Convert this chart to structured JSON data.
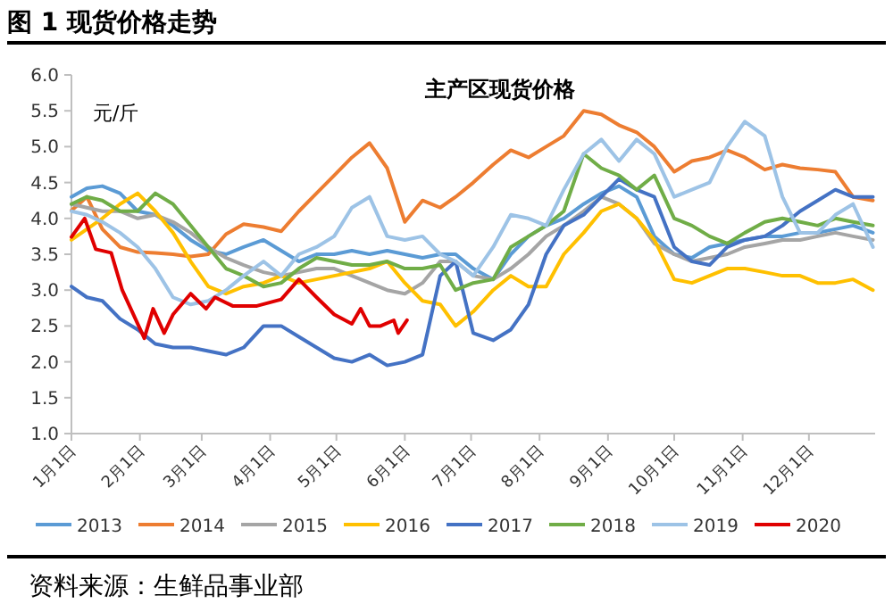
{
  "chart_data": {
    "type": "line",
    "title": "图 1 现货价格走势",
    "subtitle": "主产区现货价格",
    "ylabel": "元/斤",
    "annotations": [
      "资料来源：生鲜品事业部"
    ],
    "x": [
      "--01-01",
      "--01-08",
      "--01-15",
      "--01-23",
      "--01-31",
      "--02-08",
      "--02-16",
      "--02-24",
      "--03-04",
      "--03-12",
      "--03-20",
      "--03-29",
      "--04-06",
      "--04-14",
      "--04-22",
      "--04-30",
      "--05-08",
      "--05-16",
      "--05-24",
      "--06-01",
      "--06-09",
      "--06-17",
      "--06-24",
      "--07-02",
      "--07-11",
      "--07-19",
      "--07-27",
      "--08-04",
      "--08-12",
      "--08-21",
      "--08-29",
      "--09-06",
      "--09-14",
      "--09-22",
      "--10-01",
      "--10-09",
      "--10-17",
      "--10-25",
      "--11-02",
      "--11-11",
      "--11-19",
      "--11-27",
      "--12-05",
      "--12-13",
      "--12-21",
      "--12-30"
    ],
    "xlim": [
      "--01-01",
      "--12-31"
    ],
    "xticks": [
      {
        "value": "--01-01",
        "label": "1月1日"
      },
      {
        "value": "--02-01",
        "label": "2月1日"
      },
      {
        "value": "--03-01",
        "label": "3月1日"
      },
      {
        "value": "--04-01",
        "label": "4月1日"
      },
      {
        "value": "--05-01",
        "label": "5月1日"
      },
      {
        "value": "--06-01",
        "label": "6月1日"
      },
      {
        "value": "--07-01",
        "label": "7月1日"
      },
      {
        "value": "--08-01",
        "label": "8月1日"
      },
      {
        "value": "--09-01",
        "label": "9月1日"
      },
      {
        "value": "--10-01",
        "label": "10月1日"
      },
      {
        "value": "--11-01",
        "label": "11月1日"
      },
      {
        "value": "--12-01",
        "label": "12月1日"
      }
    ],
    "ylim": [
      1,
      6
    ],
    "yticks": [
      {
        "value": 1,
        "label": "1.0"
      },
      {
        "value": 1.5,
        "label": "1.5"
      },
      {
        "value": 2,
        "label": "2.0"
      },
      {
        "value": 2.5,
        "label": "2.5"
      },
      {
        "value": 3,
        "label": "3.0"
      },
      {
        "value": 3.5,
        "label": "3.5"
      },
      {
        "value": 4,
        "label": "4.0"
      },
      {
        "value": 4.5,
        "label": "4.5"
      },
      {
        "value": 5,
        "label": "5.0"
      },
      {
        "value": 5.5,
        "label": "5.5"
      },
      {
        "value": 6,
        "label": "6.0"
      }
    ],
    "legend": "bottom",
    "series": [
      {
        "name": "2013",
        "color": "#5b9bd5",
        "values": [
          4.3,
          4.42,
          4.45,
          4.35,
          4.1,
          4.05,
          3.9,
          3.7,
          3.55,
          3.5,
          3.6,
          3.7,
          3.55,
          3.4,
          3.5,
          3.5,
          3.55,
          3.5,
          3.55,
          3.5,
          3.45,
          3.5,
          3.5,
          3.3,
          3.15,
          3.5,
          3.75,
          3.9,
          4.0,
          4.2,
          4.35,
          4.45,
          4.3,
          3.75,
          3.5,
          3.45,
          3.6,
          3.65,
          3.7,
          3.75,
          3.75,
          3.8,
          3.8,
          3.85,
          3.9,
          3.8
        ]
      },
      {
        "name": "2014",
        "color": "#ed7d31",
        "values": [
          4.11,
          4.3,
          3.85,
          3.6,
          3.53,
          3.52,
          3.5,
          3.47,
          3.5,
          3.78,
          3.92,
          3.88,
          3.82,
          4.1,
          4.35,
          4.6,
          4.85,
          5.05,
          4.7,
          3.95,
          4.25,
          4.15,
          4.3,
          4.5,
          4.75,
          4.95,
          4.85,
          5.0,
          5.15,
          5.5,
          5.45,
          5.3,
          5.2,
          5.0,
          4.65,
          4.8,
          4.85,
          4.95,
          4.85,
          4.68,
          4.75,
          4.7,
          4.68,
          4.65,
          4.3,
          4.25
        ]
      },
      {
        "name": "2015",
        "color": "#a5a5a5",
        "values": [
          4.2,
          4.15,
          4.1,
          4.1,
          4.0,
          4.05,
          3.95,
          3.8,
          3.6,
          3.45,
          3.35,
          3.25,
          3.2,
          3.25,
          3.3,
          3.3,
          3.2,
          3.1,
          3.0,
          2.95,
          3.1,
          3.4,
          3.4,
          3.2,
          3.15,
          3.3,
          3.5,
          3.75,
          3.9,
          4.1,
          4.3,
          4.2,
          4.0,
          3.65,
          3.5,
          3.4,
          3.45,
          3.5,
          3.6,
          3.65,
          3.7,
          3.7,
          3.75,
          3.8,
          3.75,
          3.7
        ]
      },
      {
        "name": "2016",
        "color": "#ffc000",
        "values": [
          3.7,
          3.85,
          4.0,
          4.2,
          4.35,
          4.1,
          3.8,
          3.4,
          3.05,
          2.95,
          3.05,
          3.1,
          3.2,
          3.1,
          3.15,
          3.2,
          3.25,
          3.3,
          3.4,
          3.1,
          2.85,
          2.8,
          2.5,
          2.7,
          3.0,
          3.2,
          3.05,
          3.05,
          3.5,
          3.8,
          4.1,
          4.2,
          4.0,
          3.7,
          3.15,
          3.1,
          3.2,
          3.3,
          3.3,
          3.25,
          3.2,
          3.2,
          3.1,
          3.1,
          3.15,
          3.0
        ]
      },
      {
        "name": "2017",
        "color": "#4472c4",
        "values": [
          3.05,
          2.9,
          2.85,
          2.6,
          2.45,
          2.25,
          2.2,
          2.2,
          2.15,
          2.1,
          2.2,
          2.5,
          2.5,
          2.35,
          2.2,
          2.05,
          2.0,
          2.1,
          1.95,
          2.0,
          2.1,
          3.2,
          3.4,
          2.4,
          2.3,
          2.45,
          2.8,
          3.5,
          3.9,
          4.05,
          4.3,
          4.55,
          4.4,
          4.3,
          3.6,
          3.4,
          3.35,
          3.6,
          3.7,
          3.75,
          3.9,
          4.1,
          4.25,
          4.4,
          4.3,
          4.3
        ]
      },
      {
        "name": "2018",
        "color": "#70ad47",
        "values": [
          4.2,
          4.3,
          4.25,
          4.1,
          4.1,
          4.35,
          4.2,
          3.9,
          3.6,
          3.3,
          3.2,
          3.05,
          3.1,
          3.3,
          3.45,
          3.4,
          3.35,
          3.35,
          3.4,
          3.3,
          3.3,
          3.35,
          3.0,
          3.1,
          3.15,
          3.6,
          3.75,
          3.9,
          4.1,
          4.9,
          4.7,
          4.6,
          4.4,
          4.6,
          4.0,
          3.9,
          3.75,
          3.65,
          3.8,
          3.95,
          4.0,
          3.95,
          3.9,
          4.0,
          3.95,
          3.9
        ]
      },
      {
        "name": "2019",
        "color": "#9dc3e6",
        "values": [
          4.1,
          4.05,
          3.95,
          3.8,
          3.6,
          3.3,
          2.9,
          2.8,
          2.85,
          3.0,
          3.2,
          3.4,
          3.2,
          3.5,
          3.6,
          3.75,
          4.15,
          4.3,
          3.75,
          3.7,
          3.75,
          3.5,
          3.4,
          3.2,
          3.6,
          4.05,
          4.0,
          3.9,
          4.4,
          4.9,
          5.1,
          4.8,
          5.1,
          4.9,
          4.3,
          4.4,
          4.5,
          5.0,
          5.35,
          5.15,
          4.3,
          3.8,
          3.8,
          4.05,
          4.2,
          3.6
        ]
      },
      {
        "name": "2020",
        "color": "#e00000",
        "x": [
          "--01-01",
          "--01-07",
          "--01-12",
          "--01-19",
          "--01-24",
          "--02-03",
          "--02-07",
          "--02-12",
          "--02-16",
          "--02-24",
          "--03-03",
          "--03-07",
          "--03-15",
          "--03-26",
          "--04-06",
          "--04-14",
          "--04-22",
          "--04-30",
          "--05-08",
          "--05-12",
          "--05-16",
          "--05-21",
          "--05-27",
          "--05-29",
          "--06-02"
        ],
        "values": [
          3.74,
          4.0,
          3.57,
          3.52,
          3.0,
          2.33,
          2.74,
          2.4,
          2.66,
          2.95,
          2.74,
          2.9,
          2.78,
          2.78,
          2.87,
          3.15,
          2.9,
          2.66,
          2.53,
          2.74,
          2.5,
          2.5,
          2.58,
          2.4,
          2.58
        ]
      }
    ]
  }
}
